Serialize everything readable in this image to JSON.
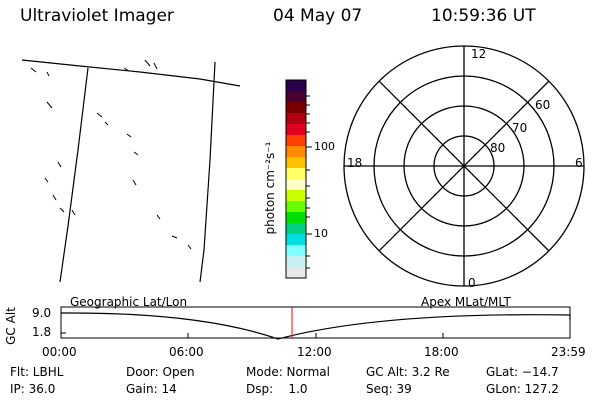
{
  "header": {
    "instrument": "Ultraviolet Imager",
    "date": "04 May 07",
    "time": "10:59:36 UT"
  },
  "colorbar": {
    "unit_label": "photon cm⁻²s⁻¹",
    "tick_100": "100",
    "tick_10": "10",
    "colors": [
      "#2a004a",
      "#4a0032",
      "#7a0000",
      "#b00010",
      "#e00020",
      "#ff4000",
      "#ff8c00",
      "#ffc000",
      "#ffff66",
      "#ffffc8",
      "#c8ff00",
      "#66ff00",
      "#00e000",
      "#00d080",
      "#00e0e0",
      "#80ffff",
      "#c8f0f0",
      "#e8e8e8"
    ]
  },
  "polar_plot": {
    "mlt_12": "12",
    "mlt_18": "18",
    "mlt_6": "6",
    "mlt_0": "0",
    "lat_60": "60",
    "lat_70": "70",
    "lat_80": "80"
  },
  "orbit_plot": {
    "left_title": "Geographic Lat/Lon",
    "right_title": "Apex MLat/MLT",
    "y_axis_label": "GC Alt",
    "y_tick_high": "9.0",
    "y_tick_low": "1.8",
    "x_ticks": [
      "00:00",
      "06:00",
      "12:00",
      "18:00",
      "23:59"
    ],
    "marker_color": "#ff0000"
  },
  "status": {
    "filter": "Flt: LBHL",
    "door": "Door: Open",
    "mode": "Mode: Normal",
    "gc_alt": "GC Alt: 3.2 Re",
    "glat": "GLat: −14.7",
    "ip": "IP: 36.0",
    "gain": "Gain: 14",
    "dsp": "Dsp:    1.0",
    "seq": "Seq: 39",
    "glon": "GLon: 127.2"
  }
}
